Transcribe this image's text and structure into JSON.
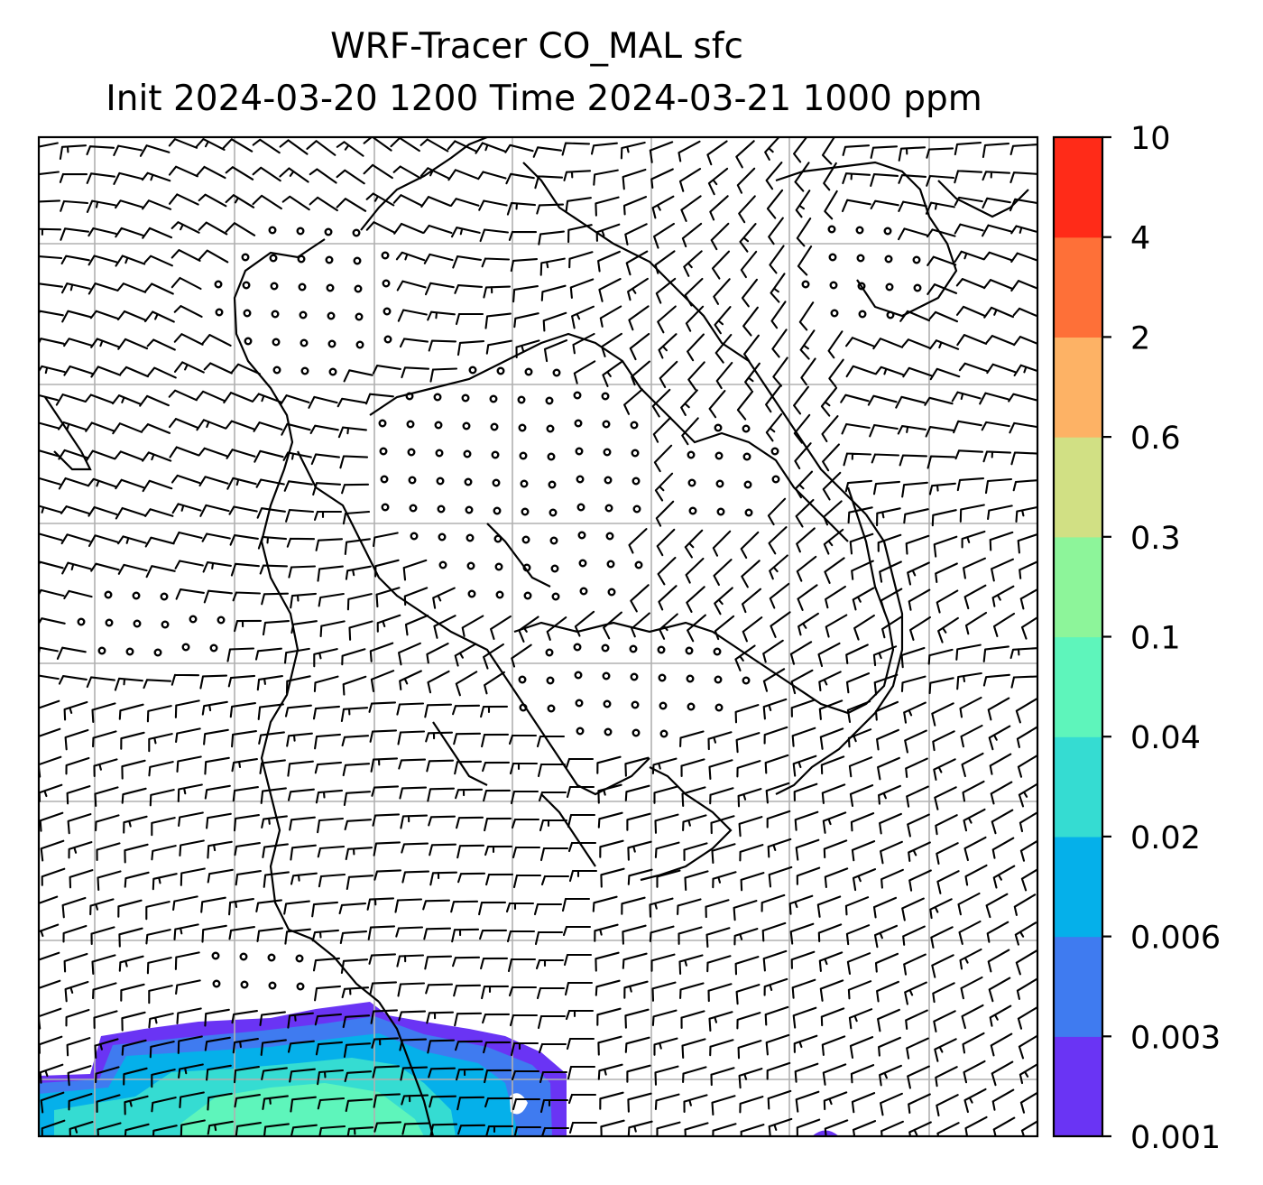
{
  "title": {
    "line1": "WRF-Tracer CO_MAL sfc",
    "line2": "Init 2024-03-20 1200 Time 2024-03-21 1000 ppm"
  },
  "colorbar": {
    "levels": [
      "0.001",
      "0.003",
      "0.006",
      "0.02",
      "0.04",
      "0.1",
      "0.3",
      "0.6",
      "2",
      "4",
      "10"
    ],
    "colors": [
      "#6a34f4",
      "#3f7bf0",
      "#05b0ea",
      "#35dcd2",
      "#5ef5bb",
      "#8df59a",
      "#d1e084",
      "#fdb265",
      "#fe7038",
      "#ff2b18"
    ]
  },
  "map": {
    "plume_colors": [
      "#6a34f4",
      "#3f7bf0",
      "#05b0ea",
      "#35dcd2",
      "#5ef5bb"
    ]
  }
}
